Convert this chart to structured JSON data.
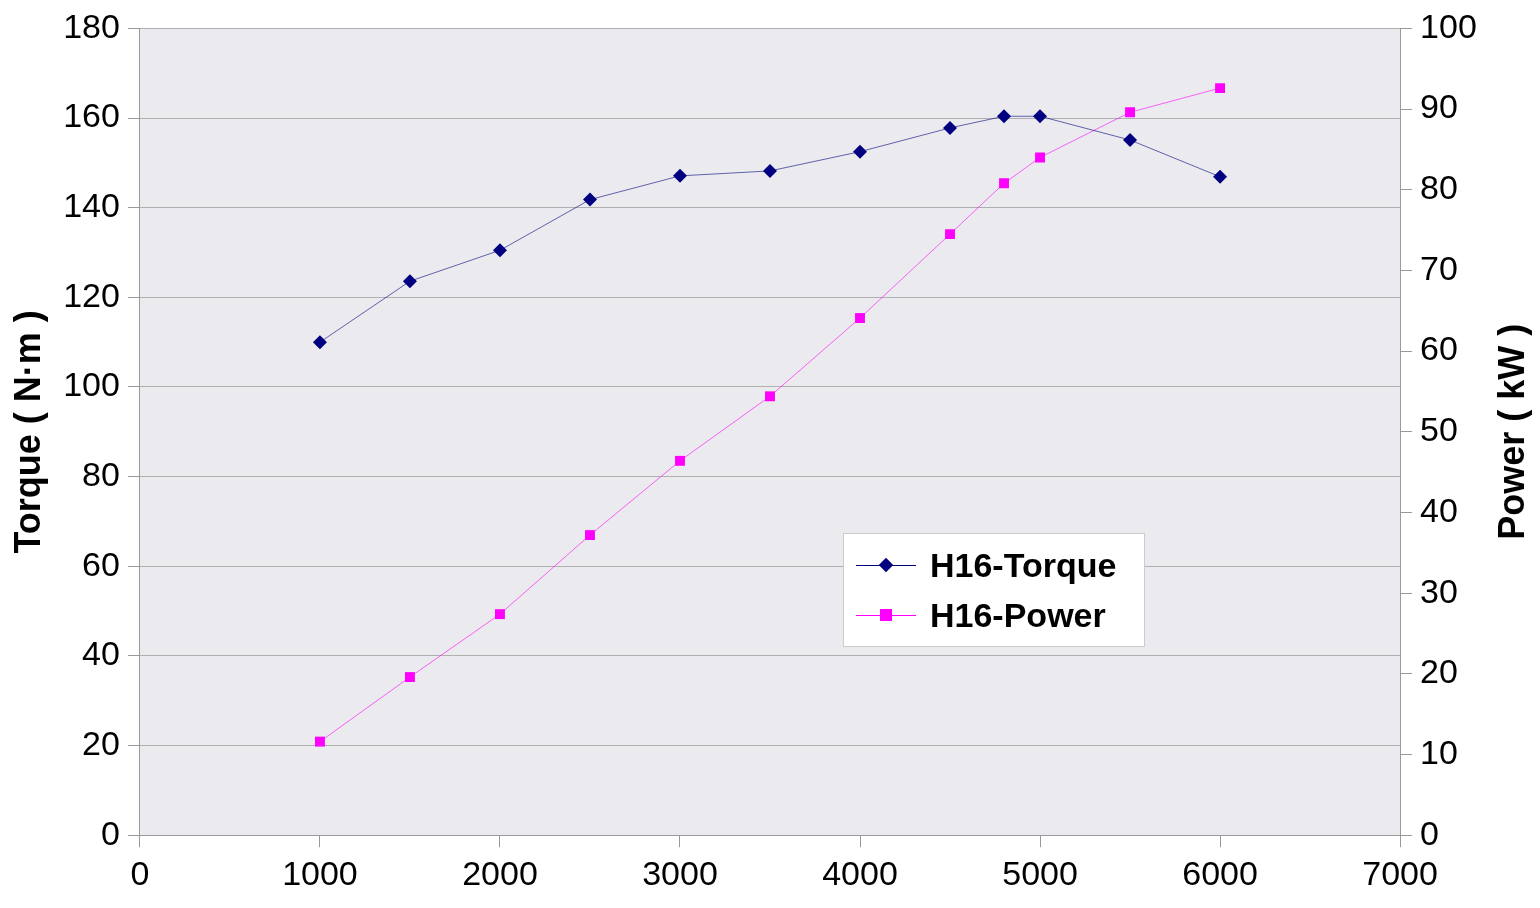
{
  "chart_data": {
    "type": "line",
    "ylabel": "Torque ( N·m )",
    "y2label": "Power ( kW )",
    "x": [
      1000,
      1500,
      2000,
      2500,
      3000,
      3500,
      4000,
      4500,
      4800,
      5000,
      5500,
      6000
    ],
    "series": [
      {
        "name": "H16-Torque",
        "color": "#000080",
        "marker": "diamond",
        "values": [
          110,
          123.6,
          130.5,
          141.8,
          147.1,
          148.2,
          152.5,
          157.8,
          160.4,
          160.4,
          155.1,
          146.9
        ]
      },
      {
        "name": "H16-Power",
        "color": "#ff00ff",
        "marker": "square",
        "axis": "y2",
        "values": [
          11.6,
          19.6,
          27.4,
          37.2,
          46.4,
          54.4,
          64.1,
          74.5,
          80.8,
          84.0,
          89.6,
          92.6
        ]
      }
    ],
    "xlim": [
      0,
      7000
    ],
    "xticks": [
      0,
      1000,
      2000,
      3000,
      4000,
      5000,
      6000,
      7000
    ],
    "ylim": [
      0,
      180
    ],
    "yticks": [
      0,
      20,
      40,
      60,
      80,
      100,
      120,
      140,
      160,
      180
    ],
    "y2lim": [
      0,
      100
    ],
    "y2ticks": [
      0,
      10,
      20,
      30,
      40,
      50,
      60,
      70,
      80,
      90,
      100
    ],
    "grid": "y",
    "legend": "right",
    "line_style": "solid"
  }
}
